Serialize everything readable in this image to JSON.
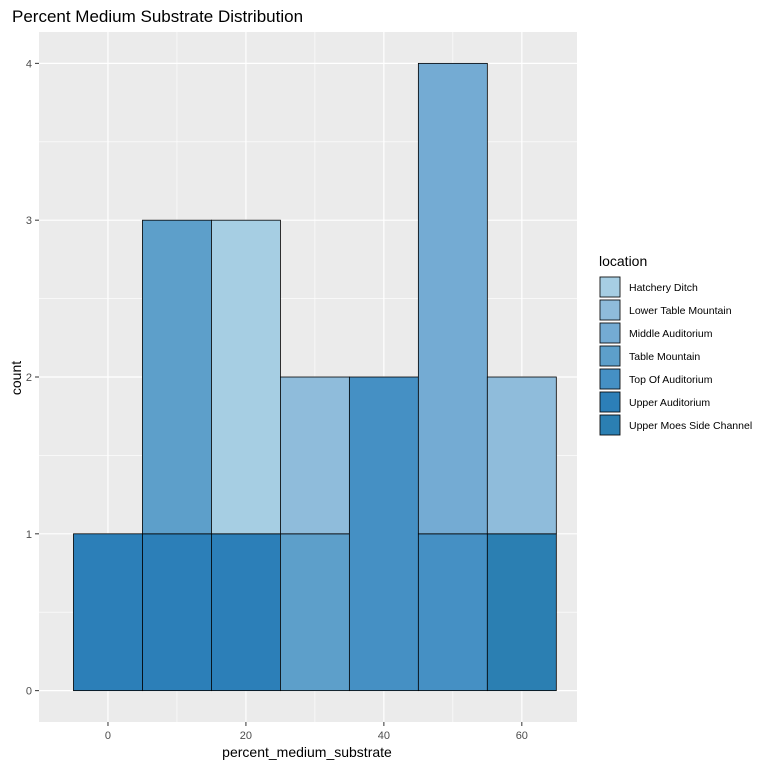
{
  "chart_data": {
    "type": "bar",
    "title": "Percent Medium Substrate Distribution",
    "xlabel": "percent_medium_substrate",
    "ylabel": "count",
    "xlim": [
      -10,
      68
    ],
    "ylim": [
      -0.2,
      4.2
    ],
    "x_ticks": [
      0,
      20,
      40,
      60
    ],
    "y_ticks": [
      0,
      1,
      2,
      3,
      4
    ],
    "bin_width": 10,
    "bins": [
      {
        "center": 0,
        "stack": [
          {
            "location": "Upper Auditorium",
            "count": 1
          }
        ]
      },
      {
        "center": 10,
        "stack": [
          {
            "location": "Upper Auditorium",
            "count": 1
          },
          {
            "location": "Table Mountain",
            "count": 2
          }
        ]
      },
      {
        "center": 20,
        "stack": [
          {
            "location": "Upper Auditorium",
            "count": 1
          },
          {
            "location": "Hatchery Ditch",
            "count": 2
          }
        ]
      },
      {
        "center": 30,
        "stack": [
          {
            "location": "Table Mountain",
            "count": 1
          },
          {
            "location": "Lower Table Mountain",
            "count": 1
          }
        ]
      },
      {
        "center": 40,
        "stack": [
          {
            "location": "Top Of Auditorium",
            "count": 2
          }
        ]
      },
      {
        "center": 50,
        "stack": [
          {
            "location": "Top Of Auditorium",
            "count": 1
          },
          {
            "location": "Middle Auditorium",
            "count": 3
          }
        ]
      },
      {
        "center": 60,
        "stack": [
          {
            "location": "Upper Moes Side Channel",
            "count": 1
          },
          {
            "location": "Lower Table Mountain",
            "count": 1
          }
        ]
      }
    ],
    "legend": {
      "title": "location",
      "position": "right",
      "items": [
        {
          "label": "Hatchery Ditch",
          "color": "#a6cee3"
        },
        {
          "label": "Lower Table Mountain",
          "color": "#8fbcdb"
        },
        {
          "label": "Middle Auditorium",
          "color": "#74abd3"
        },
        {
          "label": "Table Mountain",
          "color": "#5d9fca"
        },
        {
          "label": "Top Of Auditorium",
          "color": "#4590c4"
        },
        {
          "label": "Upper Auditorium",
          "color": "#2c7fb8"
        },
        {
          "label": "Upper Moes Side Channel",
          "color": "#2b7fb2"
        }
      ]
    },
    "panel_background": "#ebebeb",
    "grid_color": "#ffffff",
    "grid": true
  }
}
